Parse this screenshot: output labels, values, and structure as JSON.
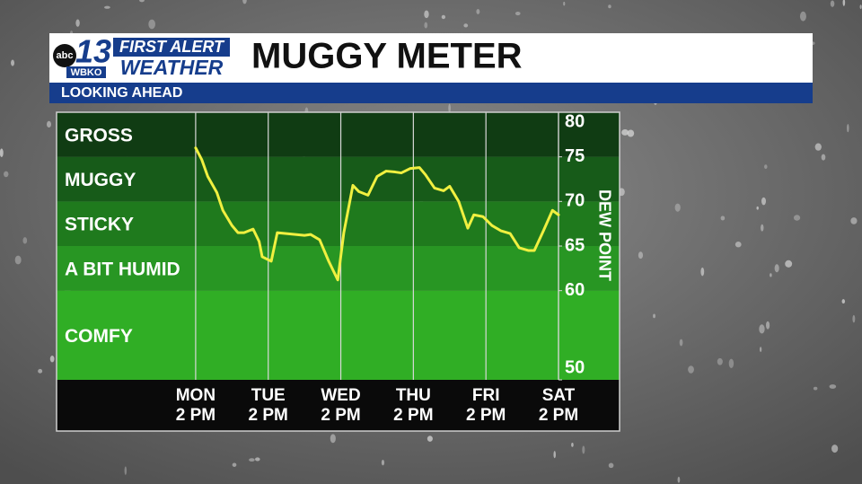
{
  "header": {
    "logo": {
      "network": "abc",
      "channel": "13",
      "station": "WBKO",
      "brand_top": "FIRST ALERT",
      "brand_bottom": "WEATHER"
    },
    "title": "MUGGY METER",
    "subtitle": "LOOKING AHEAD"
  },
  "chart_data": {
    "type": "line",
    "y2label": "DEW POINT",
    "bands": [
      {
        "name": "GROSS",
        "from": 75,
        "to": 80,
        "color": "#103c13"
      },
      {
        "name": "MUGGY",
        "from": 70,
        "to": 75,
        "color": "#175b19"
      },
      {
        "name": "STICKY",
        "from": 65,
        "to": 70,
        "color": "#1f7a1d"
      },
      {
        "name": "A BIT HUMID",
        "from": 60,
        "to": 65,
        "color": "#289623"
      },
      {
        "name": "COMFY",
        "from": 50,
        "to": 60,
        "color": "#30ae25"
      }
    ],
    "xlim": [
      -46,
      120
    ],
    "xticks": [
      {
        "value": 0,
        "label": [
          "MON",
          "2 PM"
        ]
      },
      {
        "value": 24,
        "label": [
          "TUE",
          "2 PM"
        ]
      },
      {
        "value": 48,
        "label": [
          "WED",
          "2 PM"
        ]
      },
      {
        "value": 72,
        "label": [
          "THU",
          "2 PM"
        ]
      },
      {
        "value": 96,
        "label": [
          "FRI",
          "2 PM"
        ]
      },
      {
        "value": 120,
        "label": [
          "SAT",
          "2 PM"
        ]
      }
    ],
    "ylim": [
      50,
      80
    ],
    "yticks": [
      50,
      60,
      65,
      70,
      75,
      80
    ],
    "x": [
      0,
      2,
      4,
      7,
      9,
      12,
      14,
      16,
      19,
      21,
      22,
      25,
      27,
      30,
      33,
      36,
      38,
      41,
      44,
      47,
      49,
      52,
      54,
      57,
      60,
      63,
      66,
      68,
      71,
      74,
      76,
      79,
      82,
      84,
      87,
      90,
      92,
      95,
      98,
      101,
      104,
      107,
      110,
      112,
      115,
      118,
      120
    ],
    "series": [
      {
        "color": "#f0f040",
        "values": [
          76.0,
          74.7,
          72.8,
          71.0,
          69.0,
          67.3,
          66.5,
          66.5,
          66.9,
          65.5,
          63.8,
          63.3,
          66.5,
          66.4,
          66.3,
          66.2,
          66.3,
          65.7,
          63.3,
          61.2,
          66.5,
          71.8,
          71.1,
          70.7,
          72.8,
          73.4,
          73.3,
          73.2,
          73.7,
          73.8,
          73.0,
          71.5,
          71.2,
          71.7,
          70.0,
          67.0,
          68.5,
          68.3,
          67.3,
          66.7,
          66.4,
          64.8,
          64.5,
          64.5,
          66.7,
          69.0,
          68.5
        ]
      }
    ]
  }
}
